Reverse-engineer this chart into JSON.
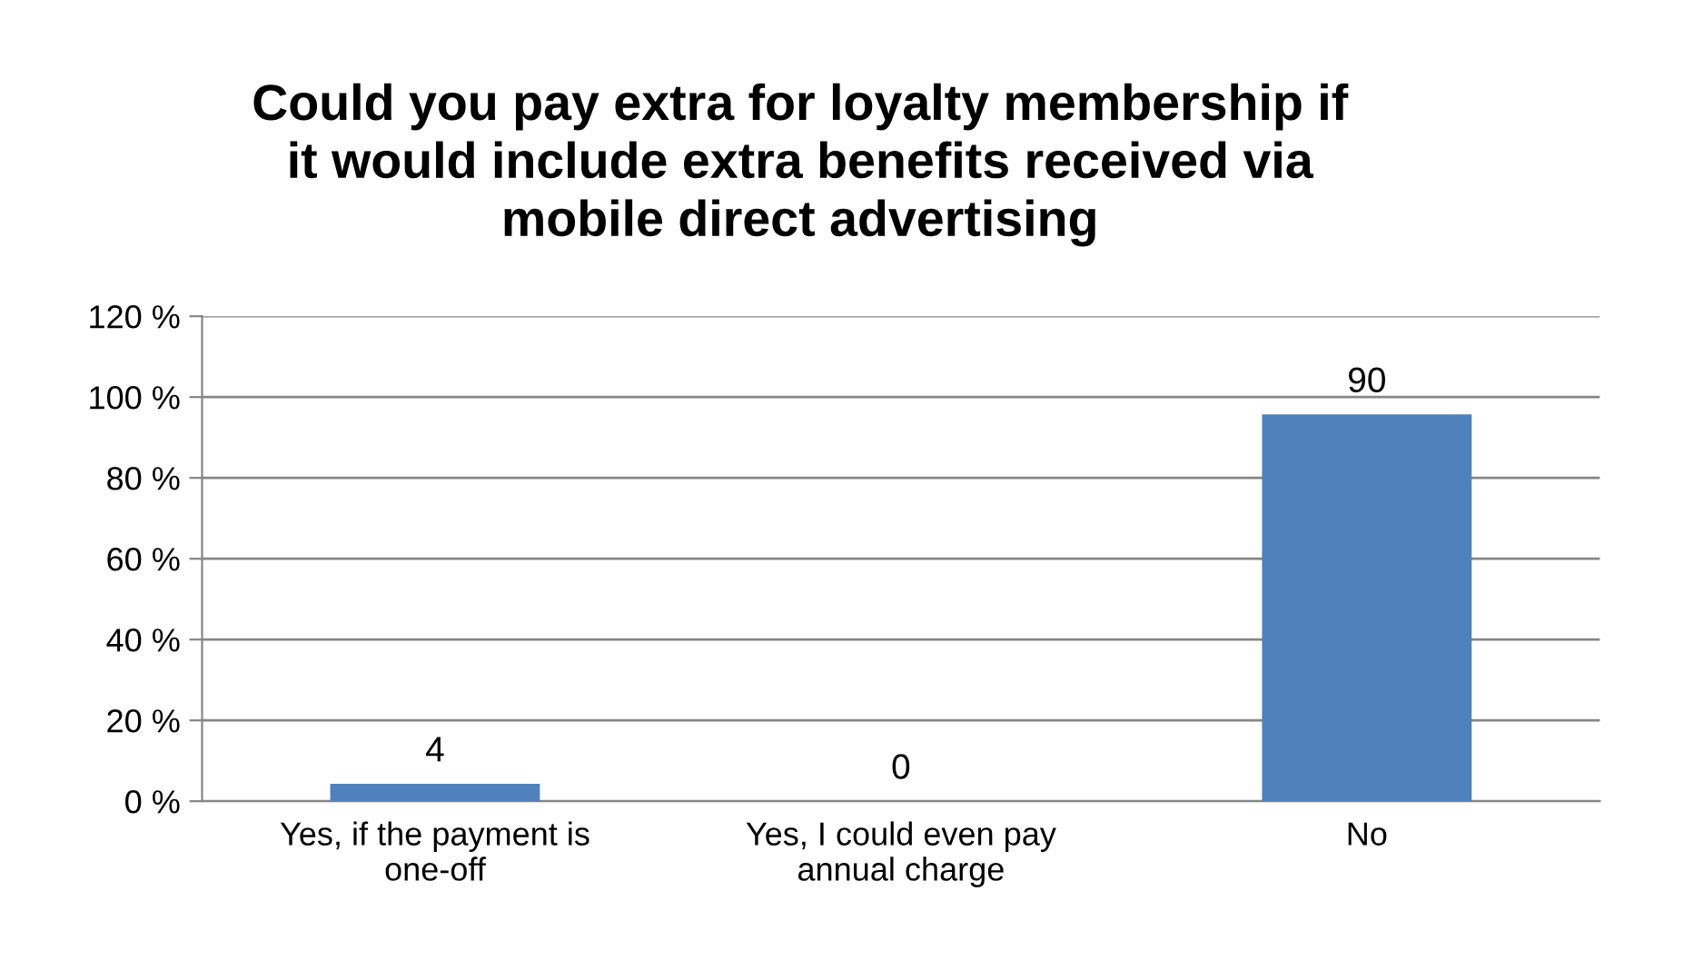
{
  "chart_data": {
    "type": "bar",
    "title": "Could you pay extra for loyalty membership if\nit would include extra benefits received via\nmobile direct advertising",
    "categories": [
      "Yes, if the payment is\none-off",
      "Yes, I could even pay\nannual charge",
      "No"
    ],
    "values": [
      4.3,
      0,
      95.7
    ],
    "color": "#4f81bd",
    "annotations": [
      {
        "text": "4",
        "x": "Yes, if the payment is\none-off",
        "y": 4.3
      },
      {
        "text": "0",
        "x": "Yes, I could even pay\nannual charge",
        "y": 0
      },
      {
        "text": "90",
        "x": "No",
        "y": 95.7
      }
    ],
    "ylim": [
      0,
      120
    ],
    "yticks": [
      {
        "value": 0,
        "label": "0 %"
      },
      {
        "value": 20,
        "label": "20 %"
      },
      {
        "value": 40,
        "label": "40 %"
      },
      {
        "value": 60,
        "label": "60 %"
      },
      {
        "value": 80,
        "label": "80 %"
      },
      {
        "value": 100,
        "label": "100 %"
      },
      {
        "value": 120,
        "label": "120 %"
      }
    ],
    "grid": "y",
    "legend": false
  }
}
